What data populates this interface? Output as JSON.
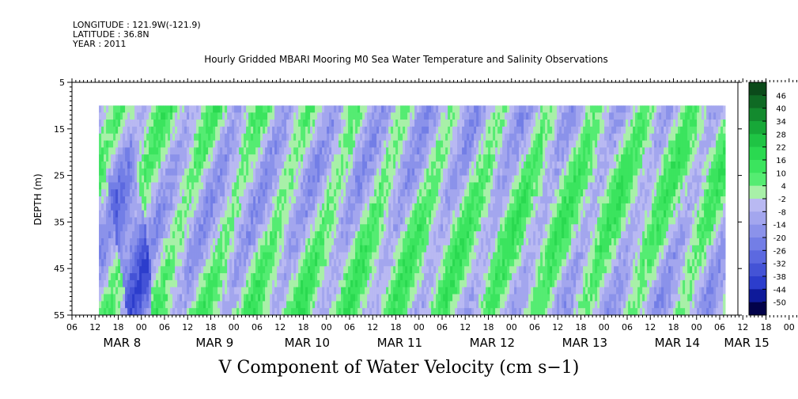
{
  "header": {
    "longitude": "LONGITUDE : 121.9W(-121.9)",
    "latitude": "LATITUDE : 36.8N",
    "year": "YEAR : 2011"
  },
  "chart_data": {
    "type": "heatmap",
    "title": "Hourly Gridded MBARI Mooring M0 Sea Water Temperature and Salinity Observations",
    "xlabel": "",
    "ylabel": "DEPTH (m)",
    "bottom_title": "V Component of Water Velocity (cm s−1)",
    "y_axis": {
      "range": [
        5,
        55
      ],
      "inverted": true,
      "ticks": [
        "5",
        "15",
        "25",
        "35",
        "45",
        "55"
      ]
    },
    "x_axis": {
      "hour_ticks": [
        "06",
        "12",
        "18",
        "00",
        "06",
        "12",
        "18",
        "00",
        "06",
        "12",
        "18",
        "00",
        "06",
        "12",
        "18",
        "00",
        "06",
        "12",
        "18",
        "00",
        "06",
        "12",
        "18",
        "00",
        "06",
        "12",
        "18",
        "00",
        "06",
        "12",
        "18",
        "00",
        "06"
      ],
      "day_labels": [
        "MAR 8",
        "MAR 9",
        "MAR 10",
        "MAR 11",
        "MAR 12",
        "MAR 13",
        "MAR 14",
        "MAR 15"
      ],
      "data_start": "MAR 8 13:00",
      "data_end": "MAR 15 07:00"
    },
    "depth_range_of_data": [
      10,
      55
    ],
    "colorbar": {
      "labels": [
        "46",
        "40",
        "34",
        "28",
        "22",
        "16",
        "10",
        "4",
        "-2",
        "-8",
        "-14",
        "-20",
        "-26",
        "-32",
        "-38",
        "-44",
        "-50"
      ],
      "range": [
        -50,
        50
      ]
    },
    "data_fields": "mostly values between -20 and +20 cm/s; strong negative (blue) band near bottom on MAR 8, alternating green/blue streaks throughout"
  },
  "colors": {
    "positive_strong": "#0a5f1e",
    "positive": "#2ee85a",
    "near_zero": "#b5b5f0",
    "negative": "#4a6be0",
    "negative_strong": "#02024a"
  }
}
